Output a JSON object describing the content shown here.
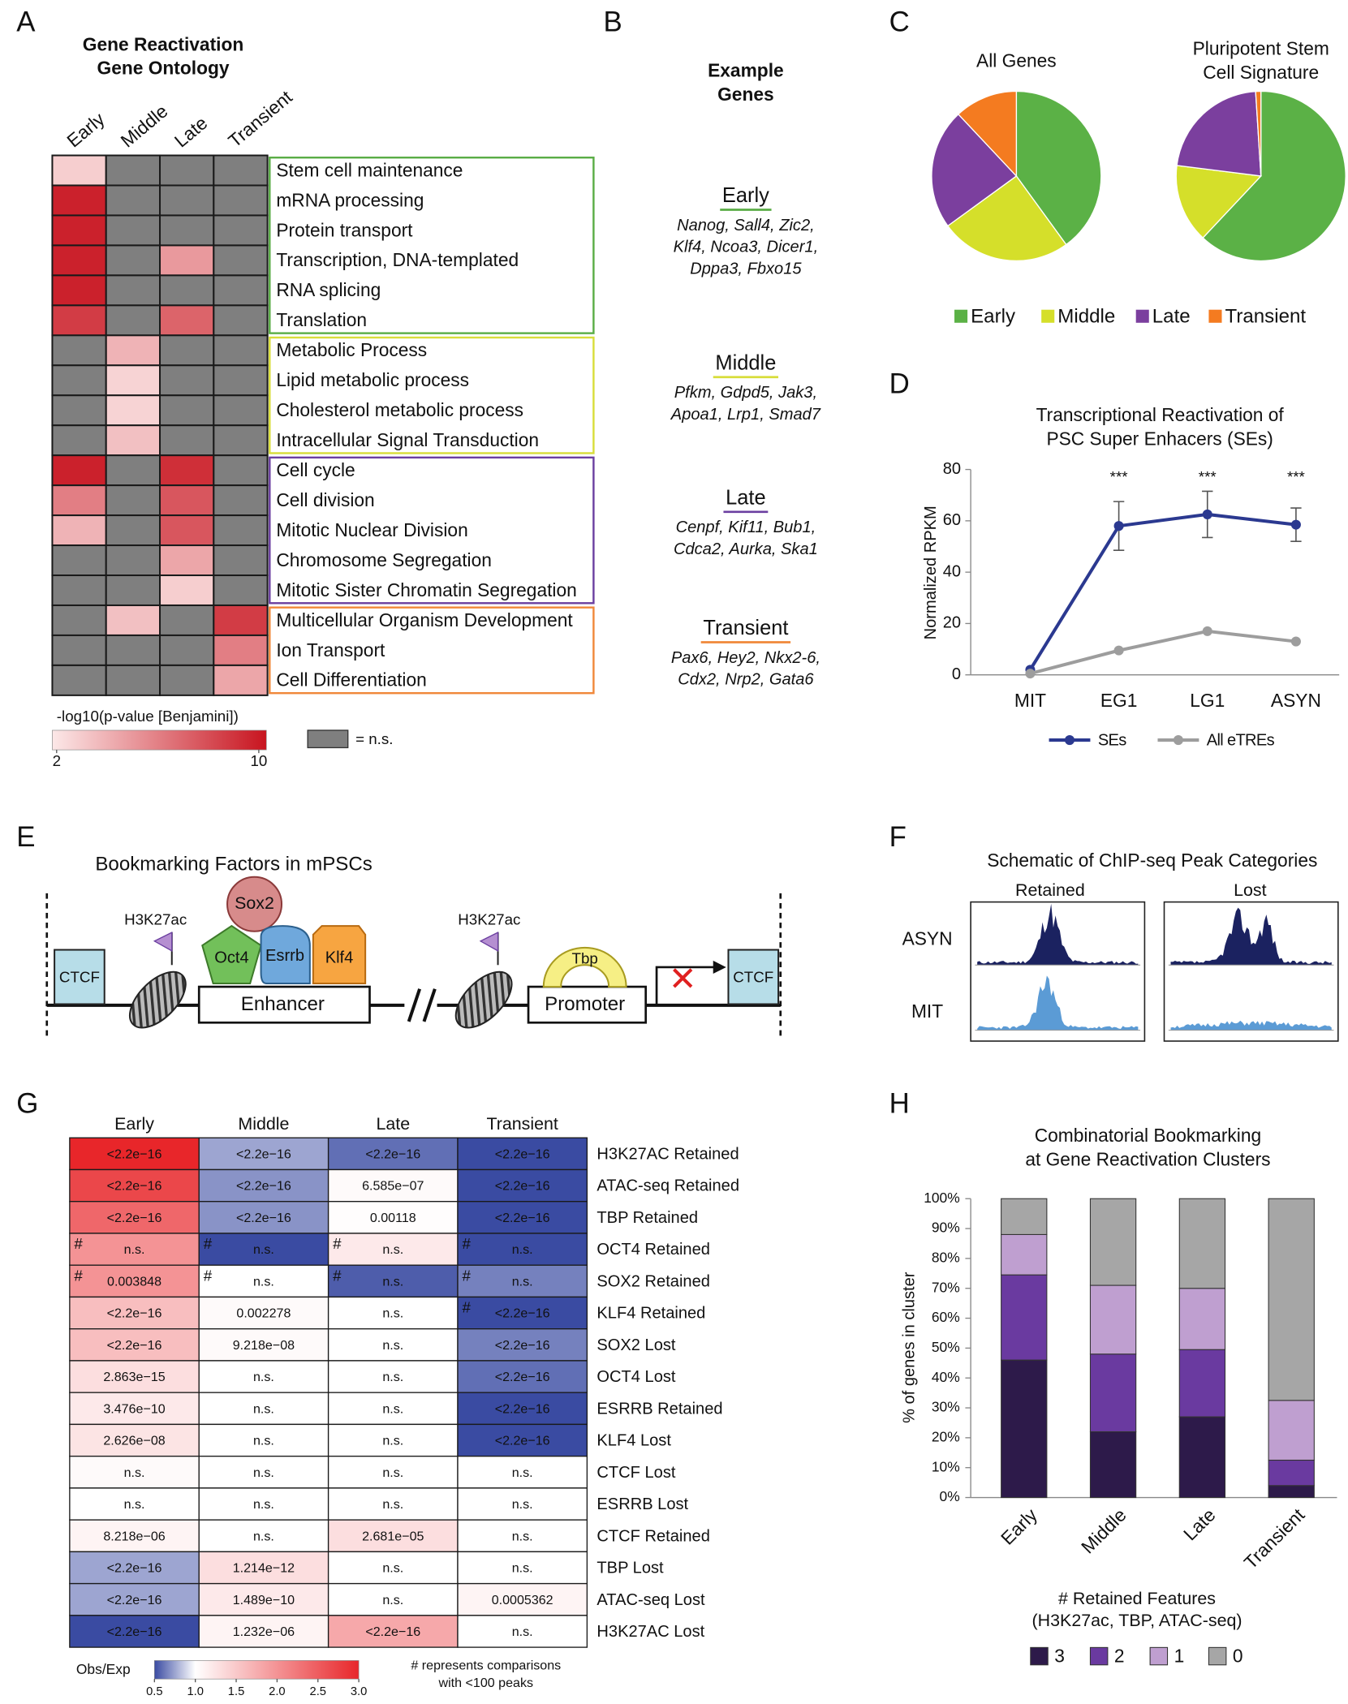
{
  "figure": {
    "panel_labels": [
      "A",
      "B",
      "C",
      "D",
      "E",
      "F",
      "G",
      "H"
    ]
  },
  "chart_data": [
    {
      "type": "heatmap",
      "title_lines": [
        "Gene Reactivation",
        "Gene Ontology"
      ],
      "columns": [
        "Early",
        "Middle",
        "Late",
        "Transient"
      ],
      "groups": [
        {
          "color": "#5aad46",
          "rows": [
            "Stem cell maintenance",
            "mRNA processing",
            "Protein transport",
            "Transcription, DNA-templated",
            "RNA splicing",
            "Translation"
          ],
          "values": [
            [
              3,
              null,
              null,
              null
            ],
            [
              9.5,
              null,
              null,
              null
            ],
            [
              9.5,
              null,
              null,
              null
            ],
            [
              9.5,
              null,
              5,
              null
            ],
            [
              9.5,
              null,
              null,
              null
            ],
            [
              8.5,
              null,
              7,
              null
            ]
          ]
        },
        {
          "color": "#d8dd3a",
          "rows": [
            "Metabolic Process",
            "Lipid metabolic process",
            "Cholesterol metabolic process",
            "Intracellular Signal Transduction"
          ],
          "values": [
            [
              null,
              4,
              null,
              null
            ],
            [
              null,
              2.8,
              null,
              null
            ],
            [
              null,
              2.8,
              null,
              null
            ],
            [
              null,
              3.5,
              null,
              null
            ]
          ]
        },
        {
          "color": "#6b3fa0",
          "rows": [
            "Cell cycle",
            "Cell division",
            "Mitotic Nuclear Division",
            "Chromosome Segregation",
            "Mitotic Sister Chromatin Segregation"
          ],
          "values": [
            [
              9.5,
              null,
              9,
              null
            ],
            [
              6,
              null,
              7.5,
              null
            ],
            [
              4,
              null,
              7.5,
              null
            ],
            [
              null,
              null,
              4.5,
              null
            ],
            [
              null,
              null,
              3,
              null
            ]
          ]
        },
        {
          "color": "#f0883a",
          "rows": [
            "Multicellular Organism Development",
            "Ion Transport",
            "Cell Differentiation"
          ],
          "values": [
            [
              null,
              3.5,
              null,
              8.5
            ],
            [
              null,
              null,
              null,
              6
            ],
            [
              null,
              null,
              null,
              4.5
            ]
          ]
        }
      ],
      "colorbar": {
        "label": "-log10(p-value [Benjamini])",
        "lim": [
          2,
          10
        ],
        "ticks": [
          2,
          10
        ],
        "colors": [
          "#fce8e8",
          "#c8141f"
        ]
      },
      "ns": {
        "color": "#7f7f7f",
        "label": "= n.s."
      }
    },
    {
      "type": "pie",
      "title_lines": [
        "All Genes"
      ],
      "categories": [
        "Early",
        "Middle",
        "Late",
        "Transient"
      ],
      "values": [
        40,
        25,
        23,
        12
      ],
      "colors": [
        "#5bb146",
        "#d5df2a",
        "#7b3f9e",
        "#f47b20"
      ]
    },
    {
      "type": "pie",
      "title_lines": [
        "Pluripotent Stem",
        "Cell Signature"
      ],
      "categories": [
        "Early",
        "Middle",
        "Late",
        "Transient"
      ],
      "values": [
        62,
        15,
        22,
        1
      ],
      "colors": [
        "#5bb146",
        "#d5df2a",
        "#7b3f9e",
        "#f47b20"
      ]
    },
    {
      "type": "line",
      "title_lines": [
        "Transcriptional Reactivation of",
        "PSC Super Enhacers (SEs)"
      ],
      "categories": [
        "MIT",
        "EG1",
        "LG1",
        "ASYN"
      ],
      "series": [
        {
          "name": "SEs",
          "color": "#2b3990",
          "values": [
            2,
            58,
            62.5,
            58.5
          ],
          "errors": [
            null,
            9.5,
            9,
            6.5
          ]
        },
        {
          "name": "All eTREs",
          "color": "#9d9d9d",
          "values": [
            0.5,
            9.5,
            17,
            13
          ]
        }
      ],
      "ylim": [
        0,
        80
      ],
      "yticks": [
        0,
        20,
        40,
        60,
        80
      ],
      "ylabel": "Normalized RPKM",
      "annotations": [
        {
          "text": "***",
          "x": "EG1"
        },
        {
          "text": "***",
          "x": "LG1"
        },
        {
          "text": "***",
          "x": "ASYN"
        }
      ]
    },
    {
      "type": "bar",
      "stacked": true,
      "title_lines": [
        "Combinatorial Bookmarking",
        "at Gene Reactivation Clusters"
      ],
      "categories": [
        "Early",
        "Middle",
        "Late",
        "Transient"
      ],
      "series": [
        {
          "name": "3",
          "color": "#2d1a4a",
          "values": [
            46,
            22,
            27,
            4
          ]
        },
        {
          "name": "2",
          "color": "#6a3aa0",
          "values": [
            28.5,
            26,
            22.5,
            8.5
          ]
        },
        {
          "name": "1",
          "color": "#bf9fd0",
          "values": [
            13.5,
            23,
            20.5,
            20
          ]
        },
        {
          "name": "0",
          "color": "#a6a6a6",
          "values": [
            12,
            29,
            30,
            67.5
          ]
        }
      ],
      "ylim": [
        0,
        100
      ],
      "yticks": [
        {
          "value": 0,
          "label": "0%"
        },
        {
          "value": 10,
          "label": "10%"
        },
        {
          "value": 20,
          "label": "20%"
        },
        {
          "value": 30,
          "label": "30%"
        },
        {
          "value": 40,
          "label": "40%"
        },
        {
          "value": 50,
          "label": "50%"
        },
        {
          "value": 60,
          "label": "60%"
        },
        {
          "value": 70,
          "label": "70%"
        },
        {
          "value": 80,
          "label": "80%"
        },
        {
          "value": 90,
          "label": "90%"
        },
        {
          "value": 100,
          "label": "100%"
        }
      ],
      "ylabel": "% of genes in cluster",
      "legend_title_lines": [
        "# Retained Features",
        "(H3K27ac, TBP, ATAC-seq)"
      ]
    },
    {
      "type": "heatmap",
      "columns": [
        "Early",
        "Middle",
        "Late",
        "Transient"
      ],
      "rows": [
        "H3K27AC Retained",
        "ATAC-seq Retained",
        "TBP Retained",
        "OCT4 Retained",
        "SOX2 Retained",
        "KLF4 Retained",
        "SOX2 Lost",
        "OCT4 Lost",
        "ESRRB Retained",
        "KLF4 Lost",
        "CTCF Lost",
        "ESRRB Lost",
        "CTCF Retained",
        "TBP Lost",
        "ATAC-seq Lost",
        "H3K27AC Lost"
      ],
      "values": [
        [
          3,
          0.75,
          0.6,
          0.45
        ],
        [
          2.7,
          0.7,
          1.05,
          0.45
        ],
        [
          2.4,
          0.7,
          1.02,
          0.45
        ],
        [
          2,
          0.45,
          1.2,
          0.45
        ],
        [
          2,
          1,
          0.55,
          0.65
        ],
        [
          1.6,
          1.05,
          1,
          0.5
        ],
        [
          1.6,
          1.05,
          1,
          0.65
        ],
        [
          1.3,
          1,
          1,
          0.6
        ],
        [
          1.2,
          1,
          1,
          0.5
        ],
        [
          1.25,
          1,
          1,
          0.45
        ],
        [
          1.05,
          1,
          1,
          1
        ],
        [
          1,
          1,
          1,
          1
        ],
        [
          1.1,
          1,
          1.3,
          1
        ],
        [
          0.75,
          1.3,
          1,
          1
        ],
        [
          0.75,
          1.2,
          1,
          1.1
        ],
        [
          0.5,
          1.1,
          1.8,
          1
        ]
      ],
      "cell_labels": [
        [
          "<2.2e−16",
          "<2.2e−16",
          "<2.2e−16",
          "<2.2e−16"
        ],
        [
          "<2.2e−16",
          "<2.2e−16",
          "6.585e−07",
          "<2.2e−16"
        ],
        [
          "<2.2e−16",
          "<2.2e−16",
          "0.00118",
          "<2.2e−16"
        ],
        [
          "n.s.",
          "n.s.",
          "n.s.",
          "n.s."
        ],
        [
          "0.003848",
          "n.s.",
          "n.s.",
          "n.s."
        ],
        [
          "<2.2e−16",
          "0.002278",
          "n.s.",
          "<2.2e−16"
        ],
        [
          "<2.2e−16",
          "9.218e−08",
          "n.s.",
          "<2.2e−16"
        ],
        [
          "2.863e−15",
          "n.s.",
          "n.s.",
          "<2.2e−16"
        ],
        [
          "3.476e−10",
          "n.s.",
          "n.s.",
          "<2.2e−16"
        ],
        [
          "2.626e−08",
          "n.s.",
          "n.s.",
          "<2.2e−16"
        ],
        [
          "n.s.",
          "n.s.",
          "n.s.",
          "n.s."
        ],
        [
          "n.s.",
          "n.s.",
          "n.s.",
          "n.s."
        ],
        [
          "8.218e−06",
          "n.s.",
          "2.681e−05",
          "n.s."
        ],
        [
          "<2.2e−16",
          "1.214e−12",
          "n.s.",
          "n.s."
        ],
        [
          "<2.2e−16",
          "1.489e−10",
          "n.s.",
          "0.0005362"
        ],
        [
          "<2.2e−16",
          "1.232e−06",
          "<2.2e−16",
          "n.s."
        ]
      ],
      "markers": [
        [
          null,
          null,
          null,
          null
        ],
        [
          null,
          null,
          null,
          null
        ],
        [
          null,
          null,
          null,
          null
        ],
        [
          "#",
          "#",
          "#",
          "#"
        ],
        [
          "#",
          "#",
          "#",
          "#"
        ],
        [
          null,
          null,
          null,
          "#"
        ],
        [
          null,
          null,
          null,
          null
        ],
        [
          null,
          null,
          null,
          null
        ],
        [
          null,
          null,
          null,
          null
        ],
        [
          null,
          null,
          null,
          null
        ],
        [
          null,
          null,
          null,
          null
        ],
        [
          null,
          null,
          null,
          null
        ],
        [
          null,
          null,
          null,
          null
        ],
        [
          null,
          null,
          null,
          null
        ],
        [
          null,
          null,
          null,
          null
        ],
        [
          null,
          null,
          null,
          null
        ]
      ],
      "colorbar": {
        "label": "Obs/Exp",
        "lim": [
          0.5,
          3
        ],
        "stops": [
          0.5,
          1,
          3
        ],
        "colors": [
          "#3a4ba2",
          "#ffffff",
          "#e8262a"
        ],
        "ticks": [
          0.5,
          {
            "value": 1,
            "label": "1.0"
          },
          1.5,
          {
            "value": 2,
            "label": "2.0"
          },
          2.5,
          {
            "value": 3,
            "label": "3.0"
          }
        ]
      },
      "note_lines": [
        "# represents comparisons",
        "with <100 peaks"
      ]
    }
  ],
  "panel_b": {
    "title_lines": [
      "Example",
      "Genes"
    ],
    "groups": [
      {
        "name": "Early",
        "color": "#5aad46",
        "genes": [
          "Nanog, Sall4, Zic2,",
          "Klf4, Ncoa3, Dicer1,",
          "Dppa3, Fbxo15"
        ]
      },
      {
        "name": "Middle",
        "color": "#d8dd3a",
        "genes": [
          "Pfkm, Gdpd5, Jak3,",
          "Apoa1, Lrp1, Smad7"
        ]
      },
      {
        "name": "Late",
        "color": "#6b3fa0",
        "genes": [
          "Cenpf, Kif11, Bub1,",
          "Cdca2, Aurka, Ska1"
        ]
      },
      {
        "name": "Transient",
        "color": "#f0883a",
        "genes": [
          "Pax6, Hey2, Nkx2-6,",
          "Cdx2, Nrp2, Gata6"
        ]
      }
    ]
  },
  "panel_e": {
    "title": "Bookmarking Factors in mPSCs",
    "labels": [
      "CTCF",
      "H3K27ac",
      "Sox2",
      "Oct4",
      "Esrrb",
      "Klf4",
      "Enhancer",
      "H3K27ac",
      "Tbp",
      "Promoter",
      "CTCF"
    ]
  },
  "panel_f": {
    "title": "Schematic of ChIP-seq Peak Categories",
    "columns": [
      "Retained",
      "Lost"
    ],
    "rows": [
      "ASYN",
      "MIT"
    ]
  }
}
